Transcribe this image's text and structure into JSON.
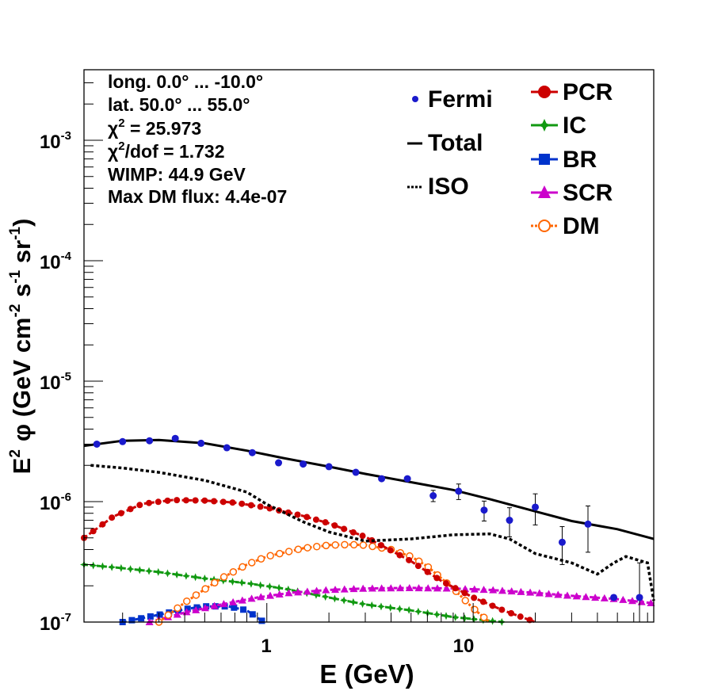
{
  "chart_data": {
    "type": "scatter",
    "xscale": "log",
    "yscale": "log",
    "xlim": [
      0.13,
      75
    ],
    "ylim": [
      1e-07,
      0.004
    ],
    "xlabel": "E (GeV)",
    "ylabel_parts": {
      "e": "E",
      "e_sup": "2",
      "phi": "φ (GeV cm",
      "cm_sup": "-2",
      "s": " s",
      "s_sup": "-1",
      "sr": " sr",
      "sr_sup": "-1",
      "close": ")"
    },
    "x_tick_labels": [
      {
        "value": 1,
        "label": "1"
      },
      {
        "value": 10,
        "label": "10"
      }
    ],
    "y_tick_labels": [
      {
        "value": 1e-07,
        "base": "10",
        "exp": "-7"
      },
      {
        "value": 1e-06,
        "base": "10",
        "exp": "-6"
      },
      {
        "value": 1e-05,
        "base": "10",
        "exp": "-5"
      },
      {
        "value": 0.0001,
        "base": "10",
        "exp": "-4"
      },
      {
        "value": 0.001,
        "base": "10",
        "exp": "-3"
      }
    ],
    "info_lines": [
      "long. 0.0° ... -10.0°",
      "lat. 50.0° ... 55.0°"
    ],
    "chi2": {
      "sym": "χ",
      "sup": "2",
      "text": " = 25.973"
    },
    "chi2dof": {
      "sym": "χ",
      "sup": "2",
      "text": "/dof = 1.732"
    },
    "info_lines2": [
      "WIMP: 44.9 GeV",
      "Max DM flux: 4.4e-07"
    ],
    "legend_left": [
      "Fermi",
      "Total",
      "ISO"
    ],
    "legend_right": [
      "PCR",
      "IC",
      "BR",
      "SCR",
      "DM"
    ],
    "colors": {
      "fermi": "#1a1acc",
      "total": "#000000",
      "iso": "#000000",
      "pcr": "#cc0000",
      "ic": "#119911",
      "br": "#0033cc",
      "scr": "#cc00cc",
      "dm": "#ff6600"
    },
    "fermi": {
      "x": [
        0.15,
        0.2,
        0.27,
        0.36,
        0.48,
        0.64,
        0.85,
        1.14,
        1.5,
        2.0,
        2.7,
        3.6,
        4.8,
        6.4,
        8.5,
        11.3,
        15,
        20,
        27,
        36,
        48,
        64
      ],
      "y": [
        3e-06,
        3.15e-06,
        3.2e-06,
        3.35e-06,
        3.05e-06,
        2.8e-06,
        2.55e-06,
        2.1e-06,
        2.05e-06,
        1.95e-06,
        1.75e-06,
        1.55e-06,
        1.55e-06,
        1.12e-06,
        1.22e-06,
        8.5e-07,
        7e-07,
        9e-07,
        4.6e-07,
        6.5e-07,
        1.6e-07,
        1.6e-07
      ],
      "y_err": [
        0,
        0,
        0,
        0,
        0,
        0,
        0,
        0,
        0,
        0,
        0,
        0,
        0,
        1.2e-07,
        1.8e-07,
        1.6e-07,
        1.9e-07,
        2.6e-07,
        1.6e-07,
        2.7e-07,
        0,
        1.5e-07
      ]
    },
    "series": [
      {
        "name": "Total",
        "style": "solid",
        "x": [
          0.13,
          0.2,
          0.3,
          0.5,
          0.8,
          1.2,
          2,
          3,
          5,
          8,
          12,
          20,
          30,
          50,
          75
        ],
        "y": [
          2.9e-06,
          3.2e-06,
          3.25e-06,
          3.05e-06,
          2.65e-06,
          2.3e-06,
          1.95e-06,
          1.7e-06,
          1.45e-06,
          1.25e-06,
          1.05e-06,
          8.3e-07,
          6.9e-07,
          5.9e-07,
          4.9e-07
        ]
      },
      {
        "name": "ISO",
        "style": "dotted",
        "x": [
          0.14,
          0.2,
          0.3,
          0.5,
          0.8,
          1.0,
          1.5,
          2,
          3,
          5,
          8,
          12,
          15,
          20,
          30,
          40,
          48,
          55,
          70,
          75
        ],
        "y": [
          2e-06,
          1.9e-06,
          1.75e-06,
          1.5e-06,
          1.2e-06,
          9.5e-07,
          6.8e-07,
          5.6e-07,
          4.7e-07,
          4.9e-07,
          5.3e-07,
          5.4e-07,
          4.9e-07,
          3.7e-07,
          3.1e-07,
          2.5e-07,
          3.1e-07,
          3.5e-07,
          3.1e-07,
          1.5e-07
        ]
      },
      {
        "name": "PCR",
        "style": "dash-marker",
        "marker": "circle",
        "x": [
          0.13,
          0.18,
          0.25,
          0.35,
          0.5,
          0.7,
          1.0,
          1.5,
          2,
          3,
          5,
          7,
          10,
          14,
          20
        ],
        "y": [
          5e-07,
          7.5e-07,
          9.6e-07,
          1.03e-06,
          1.02e-06,
          9.8e-07,
          8.9e-07,
          7.6e-07,
          6.6e-07,
          5.1e-07,
          3.2e-07,
          2.2e-07,
          1.6e-07,
          1.25e-07,
          1e-07
        ]
      },
      {
        "name": "IC",
        "style": "dash-marker",
        "marker": "star",
        "x": [
          0.13,
          0.2,
          0.3,
          0.5,
          0.8,
          1.2,
          2,
          3,
          5,
          8,
          14
        ],
        "y": [
          3e-07,
          2.8e-07,
          2.6e-07,
          2.3e-07,
          2.1e-07,
          1.9e-07,
          1.6e-07,
          1.4e-07,
          1.25e-07,
          1.1e-07,
          1e-07
        ]
      },
      {
        "name": "BR",
        "style": "dash-marker",
        "marker": "square",
        "x": [
          0.2,
          0.3,
          0.4,
          0.5,
          0.65,
          0.8,
          0.95
        ],
        "y": [
          1e-07,
          1.15e-07,
          1.28e-07,
          1.35e-07,
          1.35e-07,
          1.25e-07,
          1.02e-07
        ]
      },
      {
        "name": "SCR",
        "style": "dash-marker",
        "marker": "triangle",
        "x": [
          0.27,
          0.4,
          0.6,
          0.9,
          1.3,
          2,
          3,
          5,
          8,
          12,
          20,
          30,
          50,
          75
        ],
        "y": [
          1e-07,
          1.2e-07,
          1.4e-07,
          1.6e-07,
          1.75e-07,
          1.85e-07,
          1.9e-07,
          1.92e-07,
          1.9e-07,
          1.85e-07,
          1.75e-07,
          1.65e-07,
          1.55e-07,
          1.43e-07
        ]
      },
      {
        "name": "DM",
        "style": "dotted-marker",
        "marker": "open-circle",
        "x": [
          0.3,
          0.4,
          0.6,
          0.8,
          1.0,
          1.5,
          2,
          2.5,
          3,
          4,
          5,
          6,
          8,
          10,
          12
        ],
        "y": [
          1e-07,
          1.45e-07,
          2.3e-07,
          3e-07,
          3.5e-07,
          4.1e-07,
          4.35e-07,
          4.4e-07,
          4.35e-07,
          4e-07,
          3.5e-07,
          2.9e-07,
          1.9e-07,
          1.3e-07,
          1e-07
        ]
      }
    ]
  }
}
